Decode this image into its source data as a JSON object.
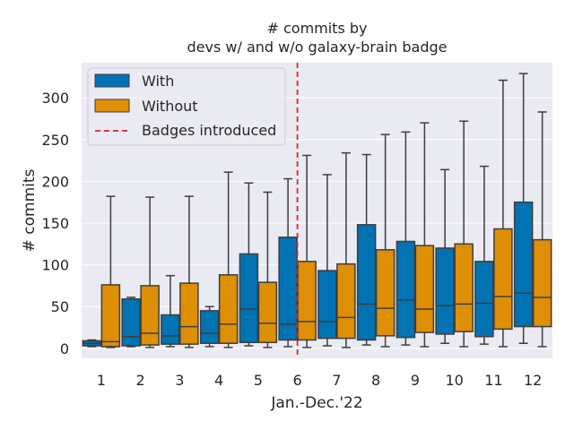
{
  "chart_data": {
    "type": "boxplot",
    "title_lines": [
      "# commits by",
      "devs w/ and w/o galaxy-brain badge"
    ],
    "xlabel": "Jan.-Dec.'22",
    "ylabel": "# commits",
    "categories": [
      "1",
      "2",
      "3",
      "4",
      "5",
      "6",
      "7",
      "8",
      "9",
      "10",
      "11",
      "12"
    ],
    "ylim": [
      -12,
      342
    ],
    "yticks": [
      0,
      50,
      100,
      150,
      200,
      250,
      300
    ],
    "grid": true,
    "colors": {
      "background": "#eaeaf2",
      "grid": "#ffffff",
      "with": "#0173b2",
      "without": "#de8f05",
      "edge": "#3d3d3d",
      "vline": "#d62728"
    },
    "vline": {
      "x_category": "6",
      "label": "Badges introduced"
    },
    "legend": {
      "placement": "top-left",
      "entries": [
        "With",
        "Without",
        "Badges introduced"
      ]
    },
    "series": [
      {
        "name": "With",
        "boxes": [
          {
            "min": 2,
            "q1": 3,
            "median": 6,
            "q3": 9,
            "max": 10
          },
          {
            "min": 2,
            "q1": 3,
            "median": 14,
            "q3": 59,
            "max": 61
          },
          {
            "min": 2,
            "q1": 5,
            "median": 15,
            "q3": 40,
            "max": 87
          },
          {
            "min": 2,
            "q1": 6,
            "median": 18,
            "q3": 45,
            "max": 50
          },
          {
            "min": 3,
            "q1": 7,
            "median": 47,
            "q3": 113,
            "max": 198
          },
          {
            "min": 2,
            "q1": 10,
            "median": 29,
            "q3": 133,
            "max": 203
          },
          {
            "min": 3,
            "q1": 12,
            "median": 32,
            "q3": 93,
            "max": 208
          },
          {
            "min": 4,
            "q1": 10,
            "median": 53,
            "q3": 148,
            "max": 232
          },
          {
            "min": 4,
            "q1": 13,
            "median": 58,
            "q3": 128,
            "max": 259
          },
          {
            "min": 6,
            "q1": 17,
            "median": 51,
            "q3": 120,
            "max": 214
          },
          {
            "min": 5,
            "q1": 14,
            "median": 54,
            "q3": 104,
            "max": 218
          },
          {
            "min": 6,
            "q1": 26,
            "median": 66,
            "q3": 175,
            "max": 329
          }
        ]
      },
      {
        "name": "Without",
        "boxes": [
          {
            "min": 1,
            "q1": 2,
            "median": 8,
            "q3": 76,
            "max": 182
          },
          {
            "min": 1,
            "q1": 4,
            "median": 18,
            "q3": 75,
            "max": 181
          },
          {
            "min": 1,
            "q1": 5,
            "median": 26,
            "q3": 78,
            "max": 182
          },
          {
            "min": 1,
            "q1": 6,
            "median": 29,
            "q3": 88,
            "max": 211
          },
          {
            "min": 1,
            "q1": 7,
            "median": 30,
            "q3": 79,
            "max": 187
          },
          {
            "min": 1,
            "q1": 10,
            "median": 32,
            "q3": 104,
            "max": 231
          },
          {
            "min": 1,
            "q1": 12,
            "median": 37,
            "q3": 101,
            "max": 234
          },
          {
            "min": 2,
            "q1": 15,
            "median": 48,
            "q3": 118,
            "max": 256
          },
          {
            "min": 2,
            "q1": 19,
            "median": 47,
            "q3": 123,
            "max": 270
          },
          {
            "min": 2,
            "q1": 20,
            "median": 53,
            "q3": 125,
            "max": 272
          },
          {
            "min": 2,
            "q1": 23,
            "median": 62,
            "q3": 143,
            "max": 321
          },
          {
            "min": 2,
            "q1": 26,
            "median": 61,
            "q3": 130,
            "max": 283
          }
        ]
      }
    ]
  }
}
